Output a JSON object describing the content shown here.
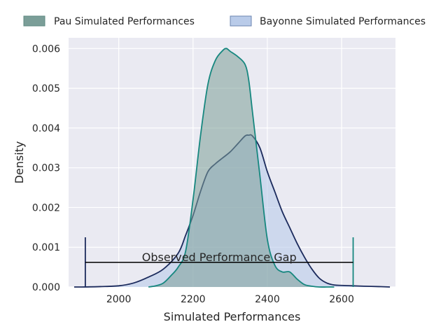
{
  "chart_data": {
    "type": "area",
    "xlabel": "Simulated Performances",
    "ylabel": "Density",
    "xlim": [
      1865,
      2745
    ],
    "ylim": [
      0,
      0.00627
    ],
    "x_ticks": [
      2000,
      2200,
      2400,
      2600
    ],
    "y_ticks": [
      0.0,
      0.001,
      0.002,
      0.003,
      0.004,
      0.005,
      0.006
    ],
    "x_tick_labels": [
      "2000",
      "2200",
      "2400",
      "2600"
    ],
    "y_tick_labels": [
      "0.000",
      "0.001",
      "0.002",
      "0.003",
      "0.004",
      "0.005",
      "0.006"
    ],
    "grid": true,
    "legend_position": "top",
    "series": [
      {
        "name": "Pau Simulated Performances",
        "fill": "#7b9e98",
        "line": "#16877f",
        "x": [
          2080,
          2100,
          2120,
          2140,
          2160,
          2180,
          2200,
          2220,
          2240,
          2260,
          2280,
          2290,
          2300,
          2320,
          2340,
          2350,
          2360,
          2380,
          2400,
          2420,
          2440,
          2460,
          2480,
          2500,
          2520,
          2540,
          2560,
          2580
        ],
        "y": [
          0.0,
          3e-05,
          0.0001,
          0.00028,
          0.0005,
          0.0009,
          0.0022,
          0.0038,
          0.0051,
          0.0057,
          0.00595,
          0.006,
          0.00593,
          0.0058,
          0.0056,
          0.0052,
          0.0044,
          0.0028,
          0.0012,
          0.00055,
          0.00038,
          0.00038,
          0.0002,
          6e-05,
          2e-05,
          0.0,
          0.0,
          0.0
        ]
      },
      {
        "name": "Bayonne Simulated Performances",
        "fill": "#b9cbe9",
        "line": "#1b2a5c",
        "x": [
          1880,
          1900,
          1950,
          2000,
          2040,
          2080,
          2120,
          2160,
          2180,
          2200,
          2220,
          2240,
          2260,
          2280,
          2300,
          2320,
          2340,
          2350,
          2360,
          2380,
          2400,
          2420,
          2440,
          2460,
          2480,
          2500,
          2520,
          2540,
          2560,
          2580,
          2600,
          2630,
          2660,
          2700,
          2730
        ],
        "y": [
          0.0,
          0.0,
          1e-05,
          3e-05,
          0.0001,
          0.00025,
          0.00045,
          0.00085,
          0.0013,
          0.0018,
          0.0024,
          0.0029,
          0.0031,
          0.00325,
          0.0034,
          0.0036,
          0.0038,
          0.00382,
          0.0038,
          0.0035,
          0.0029,
          0.0024,
          0.0019,
          0.0015,
          0.0011,
          0.00075,
          0.00045,
          0.00022,
          0.0001,
          5e-05,
          4e-05,
          3e-05,
          2e-05,
          1e-05,
          0.0
        ]
      }
    ],
    "annotations": [
      {
        "text": "Observed Performance Gap",
        "x_start": 1910,
        "x_end": 2631,
        "y": 0.00062,
        "marker_top": 0.00125,
        "start_color": "#1b2a5c",
        "end_color": "#16877f"
      }
    ]
  }
}
